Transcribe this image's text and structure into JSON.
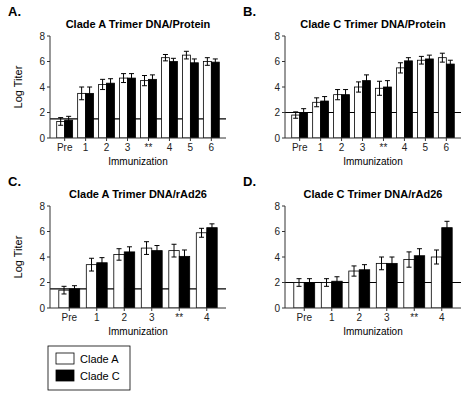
{
  "chart_data": [
    {
      "type": "bar",
      "panel_label": "A.",
      "title": "Clade A Trimer DNA/Protein",
      "x_label": "Immunization",
      "y_label": "Log Titer",
      "categories": [
        "Pre",
        "1",
        "2",
        "3",
        "**",
        "4",
        "5",
        "6"
      ],
      "reference_line": 1.5,
      "ylim": [
        0,
        8
      ],
      "yticks": [
        0,
        2,
        4,
        6,
        8
      ],
      "grid": false,
      "series": [
        {
          "name": "Clade A",
          "color": "white",
          "values": [
            1.3,
            3.5,
            4.2,
            4.7,
            4.5,
            6.3,
            6.5,
            6.0
          ],
          "errors": [
            0.3,
            0.5,
            0.4,
            0.35,
            0.4,
            0.25,
            0.3,
            0.3
          ]
        },
        {
          "name": "Clade C",
          "color": "black",
          "values": [
            1.4,
            3.5,
            4.3,
            4.7,
            4.6,
            6.0,
            5.9,
            5.95
          ],
          "errors": [
            0.3,
            0.5,
            0.35,
            0.35,
            0.35,
            0.25,
            0.3,
            0.25
          ]
        }
      ]
    },
    {
      "type": "bar",
      "panel_label": "B.",
      "title": "Clade C Trimer DNA/Protein",
      "x_label": "Immunization",
      "categories": [
        "Pre",
        "1",
        "2",
        "3",
        "**",
        "4",
        "5",
        "6"
      ],
      "reference_line": 2.0,
      "ylim": [
        0,
        8
      ],
      "yticks": [
        0,
        2,
        4,
        6,
        8
      ],
      "grid": false,
      "series": [
        {
          "name": "Clade A",
          "color": "white",
          "values": [
            1.8,
            2.8,
            3.4,
            4.0,
            3.9,
            5.5,
            6.1,
            6.3
          ],
          "errors": [
            0.25,
            0.35,
            0.4,
            0.4,
            0.55,
            0.4,
            0.3,
            0.35
          ]
        },
        {
          "name": "Clade C",
          "color": "black",
          "values": [
            2.0,
            2.9,
            3.4,
            4.5,
            4.0,
            6.05,
            6.2,
            5.8
          ],
          "errors": [
            0.3,
            0.35,
            0.4,
            0.45,
            0.5,
            0.25,
            0.3,
            0.3
          ]
        }
      ]
    },
    {
      "type": "bar",
      "panel_label": "C.",
      "title": "Clade A Trimer DNA/rAd26",
      "x_label": "Immunization",
      "y_label": "Log Titer",
      "categories": [
        "Pre",
        "1",
        "2",
        "3",
        "**",
        "4"
      ],
      "reference_line": 1.5,
      "ylim": [
        0,
        8
      ],
      "yticks": [
        0,
        2,
        4,
        6,
        8
      ],
      "grid": false,
      "legend": "below",
      "series": [
        {
          "name": "Clade A",
          "color": "white",
          "values": [
            1.4,
            3.4,
            4.2,
            4.7,
            4.5,
            5.9
          ],
          "errors": [
            0.3,
            0.5,
            0.45,
            0.5,
            0.5,
            0.35
          ]
        },
        {
          "name": "Clade C",
          "color": "black",
          "values": [
            1.5,
            3.55,
            4.4,
            4.5,
            4.05,
            6.3
          ],
          "errors": [
            0.25,
            0.4,
            0.4,
            0.4,
            0.5,
            0.3
          ]
        }
      ]
    },
    {
      "type": "bar",
      "panel_label": "D.",
      "title": "Clade C Trimer DNA/rAd26",
      "x_label": "Immunization",
      "categories": [
        "Pre",
        "1",
        "2",
        "3",
        "**",
        "4"
      ],
      "reference_line": 2.0,
      "ylim": [
        0,
        8
      ],
      "yticks": [
        0,
        2,
        4,
        6,
        8
      ],
      "grid": false,
      "series": [
        {
          "name": "Clade A",
          "color": "white",
          "values": [
            2.0,
            2.0,
            2.9,
            3.5,
            3.8,
            4.0
          ],
          "errors": [
            0.3,
            0.3,
            0.4,
            0.5,
            0.6,
            0.55
          ]
        },
        {
          "name": "Clade C",
          "color": "black",
          "values": [
            2.0,
            2.1,
            3.0,
            3.5,
            4.1,
            6.3
          ],
          "errors": [
            0.3,
            0.35,
            0.4,
            0.5,
            0.55,
            0.5
          ]
        }
      ]
    }
  ]
}
